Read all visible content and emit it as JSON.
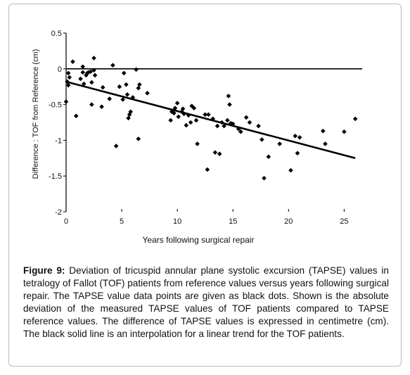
{
  "figure": {
    "label": "Figure 9:",
    "caption": "Deviation of tricuspid annular plane systolic excursion (TAPSE) values in tetralogy of Fallot (TOF) patients from reference values versus years following surgical repair. The TAPSE value data points are given as black dots. Shown is the absolute deviation of the measured TAPSE values of TOF patients compared to TAPSE reference values. The difference of TAPSE values is expressed in centimetre (cm). The black solid line is an interpolation for a linear trend for the TOF patients."
  },
  "chart_data": {
    "type": "scatter",
    "xlabel": "Years following surgical repair",
    "ylabel": "Difference :  TOF from Reference (cm)",
    "xlim": [
      0,
      27
    ],
    "ylim": [
      -2,
      0.5
    ],
    "xticks": [
      0,
      5,
      10,
      15,
      20,
      25
    ],
    "yticks": [
      -2,
      -1.5,
      -1,
      -0.5,
      0,
      0.5
    ],
    "xtick_labels": [
      "0",
      "5",
      "10",
      "15",
      "20",
      "25"
    ],
    "ytick_labels": [
      "-2",
      "-1.5",
      "-1",
      "-0.5",
      "0",
      "0.5"
    ],
    "reference_line_y": 0,
    "trend_line": {
      "x": [
        0,
        26
      ],
      "y": [
        -0.18,
        -1.25
      ]
    },
    "grid": false,
    "marker": "diamond",
    "series": [
      {
        "points": [
          [
            0.0,
            -0.46
          ],
          [
            0.1,
            -0.18
          ],
          [
            0.2,
            -0.06
          ],
          [
            0.2,
            -0.23
          ],
          [
            0.3,
            -0.12
          ],
          [
            0.6,
            0.1
          ],
          [
            0.9,
            -0.66
          ],
          [
            1.3,
            -0.14
          ],
          [
            1.5,
            -0.05
          ],
          [
            1.5,
            0.03
          ],
          [
            1.6,
            -0.21
          ],
          [
            1.8,
            -0.09
          ],
          [
            1.9,
            -0.06
          ],
          [
            2.0,
            -0.05
          ],
          [
            2.2,
            -0.04
          ],
          [
            2.3,
            -0.19
          ],
          [
            2.3,
            -0.5
          ],
          [
            2.5,
            0.15
          ],
          [
            2.5,
            -0.02
          ],
          [
            2.6,
            -0.09
          ],
          [
            3.2,
            -0.53
          ],
          [
            3.3,
            -0.26
          ],
          [
            3.9,
            -0.42
          ],
          [
            4.2,
            0.05
          ],
          [
            4.5,
            -1.08
          ],
          [
            4.8,
            -0.25
          ],
          [
            5.1,
            -0.43
          ],
          [
            5.2,
            -0.06
          ],
          [
            5.4,
            -0.22
          ],
          [
            5.5,
            -0.36
          ],
          [
            5.6,
            -0.69
          ],
          [
            5.7,
            -0.64
          ],
          [
            5.8,
            -0.6
          ],
          [
            6.0,
            -0.4
          ],
          [
            6.3,
            -0.01
          ],
          [
            6.5,
            -0.27
          ],
          [
            6.5,
            -0.98
          ],
          [
            6.6,
            -0.22
          ],
          [
            7.3,
            -0.34
          ],
          [
            9.4,
            -0.72
          ],
          [
            9.5,
            -0.6
          ],
          [
            9.7,
            -0.62
          ],
          [
            9.8,
            -0.55
          ],
          [
            10.0,
            -0.48
          ],
          [
            10.1,
            -0.67
          ],
          [
            10.4,
            -0.6
          ],
          [
            10.5,
            -0.56
          ],
          [
            10.6,
            -0.63
          ],
          [
            10.8,
            -0.79
          ],
          [
            11.0,
            -0.65
          ],
          [
            11.2,
            -0.75
          ],
          [
            11.3,
            -0.52
          ],
          [
            11.5,
            -0.55
          ],
          [
            11.7,
            -0.72
          ],
          [
            11.8,
            -1.05
          ],
          [
            12.5,
            -0.64
          ],
          [
            12.7,
            -1.41
          ],
          [
            12.8,
            -0.64
          ],
          [
            13.2,
            -0.7
          ],
          [
            13.4,
            -1.17
          ],
          [
            13.6,
            -0.8
          ],
          [
            13.8,
            -1.19
          ],
          [
            14.0,
            -0.75
          ],
          [
            14.2,
            -0.8
          ],
          [
            14.5,
            -0.72
          ],
          [
            14.6,
            -0.38
          ],
          [
            14.7,
            -0.5
          ],
          [
            14.8,
            -0.76
          ],
          [
            15.0,
            -0.77
          ],
          [
            15.5,
            -0.84
          ],
          [
            15.7,
            -0.88
          ],
          [
            16.2,
            -0.68
          ],
          [
            16.5,
            -0.75
          ],
          [
            17.3,
            -0.8
          ],
          [
            17.6,
            -0.99
          ],
          [
            17.8,
            -1.53
          ],
          [
            18.2,
            -1.23
          ],
          [
            19.2,
            -1.05
          ],
          [
            20.2,
            -1.42
          ],
          [
            20.6,
            -0.94
          ],
          [
            20.8,
            -1.18
          ],
          [
            21.0,
            -0.96
          ],
          [
            23.1,
            -0.87
          ],
          [
            23.3,
            -1.05
          ],
          [
            25.0,
            -0.88
          ],
          [
            26.0,
            -0.7
          ]
        ]
      }
    ]
  }
}
